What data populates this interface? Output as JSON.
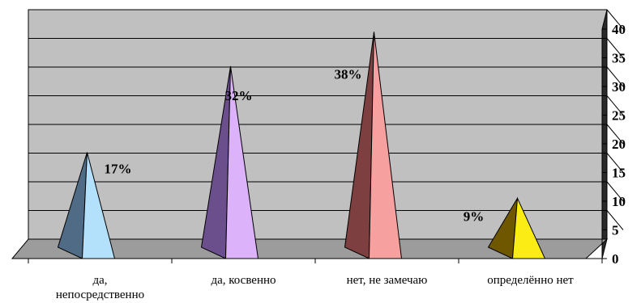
{
  "chart_data": {
    "type": "bar",
    "style": "3d-pyramid",
    "categories": [
      "да, непосредственно",
      "да, косвенно",
      "нет, не замечаю",
      "определённо нет"
    ],
    "category_lines": [
      [
        "да,",
        "непосредственно"
      ],
      [
        "да, косвенно"
      ],
      [
        "нет, не замечаю"
      ],
      [
        "определённо нет"
      ]
    ],
    "values": [
      17,
      32,
      38,
      9
    ],
    "data_labels": [
      "17%",
      "32%",
      "38%",
      "9%"
    ],
    "ylim": [
      0,
      40
    ],
    "yticks": [
      "0",
      "5",
      "10",
      "15",
      "20",
      "25",
      "30",
      "35",
      "40"
    ],
    "grid": true,
    "legend": "none",
    "colors": [
      {
        "dark": "#4f6b85",
        "light": "#b3e0fb"
      },
      {
        "dark": "#6b4f8c",
        "light": "#dcb3fb"
      },
      {
        "dark": "#7d3f3f",
        "light": "#f7a0a0"
      },
      {
        "dark": "#6f5700",
        "light": "#fbec16"
      }
    ],
    "wall_color": "#c0c0c0",
    "floor_color": "#9c9c9c"
  }
}
